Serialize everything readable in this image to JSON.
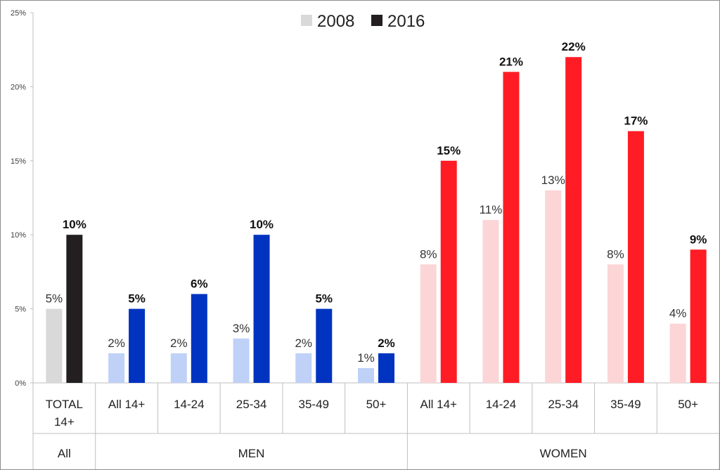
{
  "chart_data": {
    "type": "bar",
    "title": "",
    "xlabel": "",
    "ylabel": "",
    "ylim": [
      0,
      25
    ],
    "yticks": [
      "0%",
      "5%",
      "10%",
      "15%",
      "20%",
      "25%"
    ],
    "legend_position": "top-center",
    "grid": false,
    "categories": [
      "TOTAL 14+",
      "All 14+",
      "14-24",
      "25-34",
      "35-49",
      "50+",
      "All 14+",
      "14-24",
      "25-34",
      "35-49",
      "50+"
    ],
    "groups": [
      {
        "label": "All",
        "span": 1
      },
      {
        "label": "MEN",
        "span": 5
      },
      {
        "label": "WOMEN",
        "span": 5
      }
    ],
    "series": [
      {
        "name": "2008",
        "values": [
          5,
          2,
          2,
          3,
          2,
          1,
          8,
          11,
          13,
          8,
          4
        ],
        "labels": [
          "5%",
          "2%",
          "2%",
          "3%",
          "2%",
          "1%",
          "8%",
          "11%",
          "13%",
          "8%",
          "4%"
        ]
      },
      {
        "name": "2016",
        "values": [
          10,
          5,
          6,
          10,
          5,
          2,
          15,
          21,
          22,
          17,
          9
        ],
        "labels": [
          "10%",
          "5%",
          "6%",
          "10%",
          "5%",
          "2%",
          "15%",
          "21%",
          "22%",
          "17%",
          "9%"
        ]
      }
    ],
    "colors": {
      "all_2008": "#d9d9d9",
      "all_2016": "#231f20",
      "men_2008": "#c0d1f8",
      "men_2016": "#0033c0",
      "women_2008": "#fcd5d7",
      "women_2016": "#ff1c24",
      "legend_2008": "#d9d9d9",
      "legend_2016": "#231f20"
    }
  }
}
